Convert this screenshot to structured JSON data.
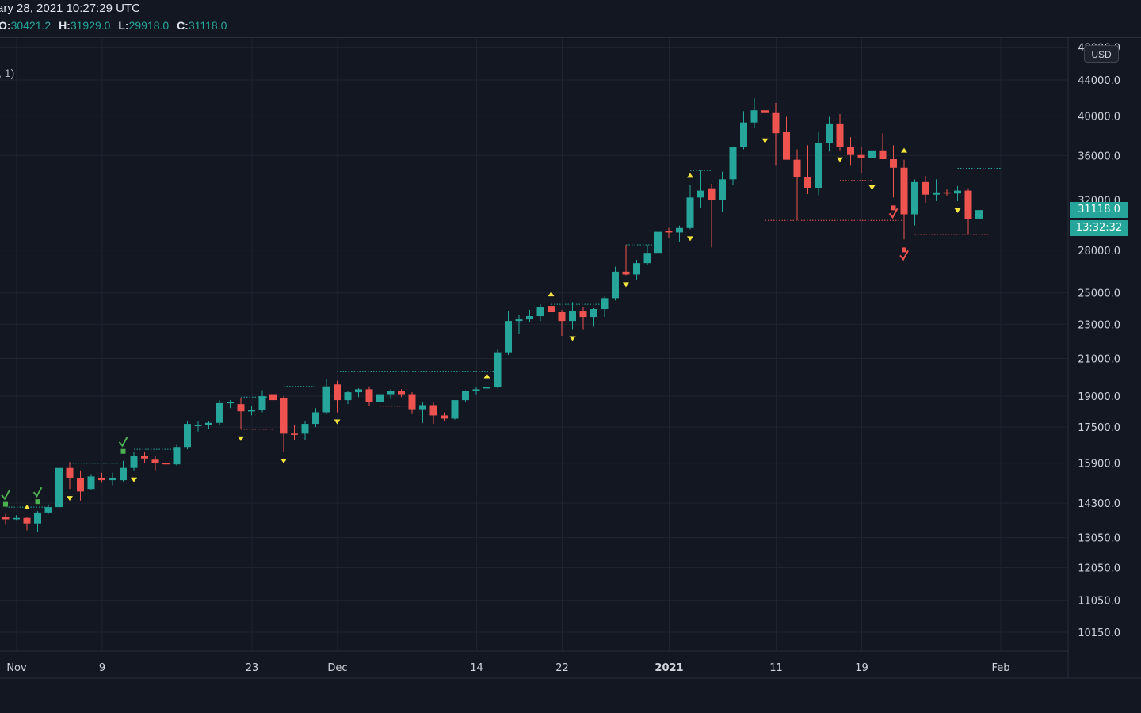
{
  "header": {
    "title": "ary 28, 2021 10:27:29 UTC",
    "ohlc": [
      {
        "key": "O:",
        "value": "30421.2"
      },
      {
        "key": "H:",
        "value": "31929.0"
      },
      {
        "key": "L:",
        "value": "29918.0"
      },
      {
        "key": "C:",
        "value": "31118.0"
      }
    ]
  },
  "study_label": ", 1)",
  "price_axis": {
    "currency": "USD",
    "last_price_label": "31118.0",
    "countdown": "13:32:32"
  },
  "colors": {
    "background": "#131722",
    "grid": "#1f2330",
    "up": "#26a69a",
    "down": "#ef5350",
    "marker": "#f5e53d",
    "check_green": "#4caf50",
    "check_red": "#ef5350"
  },
  "chart_data": {
    "type": "candlestick",
    "symbol_interval": "1D",
    "y_scale": "log",
    "ylim": [
      9600,
      48000
    ],
    "y_ticks": [
      "10150.0",
      "11050.0",
      "12050.0",
      "13050.0",
      "14300.0",
      "15900.0",
      "17500.0",
      "19000.0",
      "21000.0",
      "23000.0",
      "25000.0",
      "28000.0",
      "32000.0",
      "36000.0",
      "40000.0",
      "44000.0",
      "48000.0"
    ],
    "x_ticks": [
      {
        "label": "Nov",
        "index": 0,
        "bold": false
      },
      {
        "label": "9",
        "index": 8,
        "bold": false
      },
      {
        "label": "23",
        "index": 22,
        "bold": false
      },
      {
        "label": "Dec",
        "index": 30,
        "bold": false
      },
      {
        "label": "14",
        "index": 43,
        "bold": false
      },
      {
        "label": "22",
        "index": 51,
        "bold": false
      },
      {
        "label": "2021",
        "index": 61,
        "bold": true
      },
      {
        "label": "11",
        "index": 71,
        "bold": false
      },
      {
        "label": "19",
        "index": 79,
        "bold": false
      },
      {
        "label": "Feb",
        "index": 92,
        "bold": false
      }
    ],
    "candles": [
      [
        13800,
        13900,
        13500,
        13700
      ],
      [
        13700,
        13850,
        13650,
        13750
      ],
      [
        13750,
        13800,
        13300,
        13550
      ],
      [
        13550,
        14000,
        13250,
        13950
      ],
      [
        13950,
        14250,
        13900,
        14150
      ],
      [
        14150,
        15800,
        14100,
        15700
      ],
      [
        15700,
        15950,
        14850,
        15300
      ],
      [
        15300,
        15600,
        14400,
        14750
      ],
      [
        14850,
        15450,
        14800,
        15350
      ],
      [
        15300,
        15500,
        15100,
        15200
      ],
      [
        15200,
        15500,
        15000,
        15300
      ],
      [
        15200,
        16000,
        15150,
        15700
      ],
      [
        15700,
        16400,
        15600,
        16200
      ],
      [
        16200,
        16400,
        15900,
        16100
      ],
      [
        16050,
        16200,
        15600,
        15900
      ],
      [
        15900,
        16000,
        15700,
        15850
      ],
      [
        15850,
        16700,
        15800,
        16600
      ],
      [
        16600,
        17800,
        16500,
        17650
      ],
      [
        17600,
        17800,
        17300,
        17600
      ],
      [
        17600,
        17800,
        17400,
        17700
      ],
      [
        17700,
        18800,
        17600,
        18650
      ],
      [
        18650,
        18800,
        18400,
        18700
      ],
      [
        18600,
        18900,
        17400,
        18250
      ],
      [
        18250,
        18500,
        18050,
        18300
      ],
      [
        18300,
        19300,
        18200,
        19000
      ],
      [
        19100,
        19500,
        18700,
        18800
      ],
      [
        18900,
        19000,
        16400,
        17200
      ],
      [
        17200,
        17600,
        16900,
        17150
      ],
      [
        17200,
        17800,
        16900,
        17650
      ],
      [
        17650,
        18400,
        17500,
        18200
      ],
      [
        18200,
        19900,
        18100,
        19500
      ],
      [
        19600,
        19800,
        18200,
        18800
      ],
      [
        18800,
        19250,
        18600,
        19200
      ],
      [
        19200,
        19400,
        18950,
        19350
      ],
      [
        19350,
        19500,
        18500,
        18700
      ],
      [
        18700,
        19300,
        18300,
        19100
      ],
      [
        19100,
        19350,
        18850,
        19250
      ],
      [
        19250,
        19350,
        18950,
        19100
      ],
      [
        19100,
        19200,
        18150,
        18350
      ],
      [
        18350,
        18700,
        17700,
        18550
      ],
      [
        18550,
        18700,
        17650,
        18050
      ],
      [
        18050,
        18200,
        17800,
        17900
      ],
      [
        17900,
        18800,
        17850,
        18800
      ],
      [
        18800,
        19300,
        18700,
        19250
      ],
      [
        19250,
        19450,
        19100,
        19350
      ],
      [
        19400,
        19550,
        19100,
        19450
      ],
      [
        19450,
        21500,
        19400,
        21350
      ],
      [
        21350,
        23850,
        21200,
        23200
      ],
      [
        23200,
        23600,
        22400,
        23300
      ],
      [
        23300,
        23900,
        23150,
        23500
      ],
      [
        23500,
        24250,
        23200,
        24100
      ],
      [
        24150,
        24300,
        23600,
        23750
      ],
      [
        23750,
        23900,
        22300,
        23200
      ],
      [
        23200,
        24400,
        22700,
        23850
      ],
      [
        23800,
        24100,
        22700,
        23450
      ],
      [
        23450,
        24000,
        22850,
        23950
      ],
      [
        23950,
        24750,
        23450,
        24650
      ],
      [
        24650,
        26800,
        24500,
        26450
      ],
      [
        26450,
        28400,
        26200,
        26250
      ],
      [
        26250,
        27300,
        25900,
        27050
      ],
      [
        27050,
        28400,
        26950,
        27800
      ],
      [
        27800,
        29600,
        27650,
        29400
      ],
      [
        29450,
        29700,
        28950,
        29350
      ],
      [
        29350,
        29900,
        28600,
        29700
      ],
      [
        29700,
        33300,
        29600,
        32200
      ],
      [
        32200,
        34600,
        31300,
        32800
      ],
      [
        33000,
        33400,
        28200,
        32000
      ],
      [
        32000,
        34500,
        31000,
        33800
      ],
      [
        33800,
        36800,
        33300,
        36800
      ],
      [
        36800,
        40500,
        36600,
        39300
      ],
      [
        39300,
        41900,
        38700,
        40600
      ],
      [
        40600,
        41300,
        38400,
        40300
      ],
      [
        40300,
        41400,
        35100,
        38200
      ],
      [
        38300,
        39900,
        35800,
        35600
      ],
      [
        35600,
        36600,
        30300,
        34000
      ],
      [
        34000,
        37000,
        32500,
        33050
      ],
      [
        33050,
        38400,
        32400,
        37250
      ],
      [
        37250,
        39900,
        36400,
        39200
      ],
      [
        39200,
        40200,
        36500,
        36850
      ],
      [
        36850,
        37800,
        35100,
        36050
      ],
      [
        36050,
        36800,
        34400,
        35800
      ],
      [
        35800,
        36900,
        33900,
        36500
      ],
      [
        36500,
        38200,
        35800,
        35650
      ],
      [
        35650,
        37000,
        32200,
        34850
      ],
      [
        34850,
        35600,
        28800,
        30800
      ],
      [
        30800,
        33800,
        29900,
        33550
      ],
      [
        33550,
        34100,
        31750,
        32450
      ],
      [
        32450,
        33800,
        31900,
        32650
      ],
      [
        32650,
        32900,
        32300,
        32550
      ],
      [
        32550,
        33200,
        31900,
        32800
      ],
      [
        32800,
        33000,
        29200,
        30400
      ],
      [
        30450,
        31950,
        29900,
        31150
      ]
    ],
    "signals": {
      "up_triangles_below": [
        2,
        45,
        51,
        64,
        84
      ],
      "down_triangles_above": [
        6,
        12,
        22,
        26,
        31,
        53,
        58,
        64,
        71,
        78,
        81,
        89
      ],
      "check_marks": [
        {
          "index": 0,
          "side": "below",
          "color": "green"
        },
        {
          "index": 3,
          "side": "below",
          "color": "green"
        },
        {
          "index": 11,
          "side": "below",
          "color": "green"
        },
        {
          "index": 83,
          "side": "above",
          "color": "red"
        },
        {
          "index": 84,
          "side": "above",
          "color": "red"
        }
      ],
      "levels": [
        {
          "from": 0,
          "to": 4,
          "price": 14150,
          "color": "green"
        },
        {
          "from": 6,
          "to": 11,
          "price": 15900,
          "color": "green"
        },
        {
          "from": 12,
          "to": 16,
          "price": 16500,
          "color": "green"
        },
        {
          "from": 22,
          "to": 25,
          "price": 18950,
          "color": "green"
        },
        {
          "from": 22,
          "to": 25,
          "price": 17400,
          "color": "red"
        },
        {
          "from": 26,
          "to": 29,
          "price": 19500,
          "color": "green"
        },
        {
          "from": 31,
          "to": 46,
          "price": 20300,
          "color": "green"
        },
        {
          "from": 35,
          "to": 38,
          "price": 18500,
          "color": "red"
        },
        {
          "from": 51,
          "to": 56,
          "price": 24250,
          "color": "green"
        },
        {
          "from": 58,
          "to": 61,
          "price": 28400,
          "color": "green"
        },
        {
          "from": 64,
          "to": 66,
          "price": 34600,
          "color": "green"
        },
        {
          "from": 71,
          "to": 84,
          "price": 30300,
          "color": "red"
        },
        {
          "from": 78,
          "to": 81,
          "price": 33700,
          "color": "red"
        },
        {
          "from": 85,
          "to": 92,
          "price": 29200,
          "color": "red"
        },
        {
          "from": 89,
          "to": 93,
          "price": 34800,
          "color": "green"
        }
      ]
    }
  }
}
